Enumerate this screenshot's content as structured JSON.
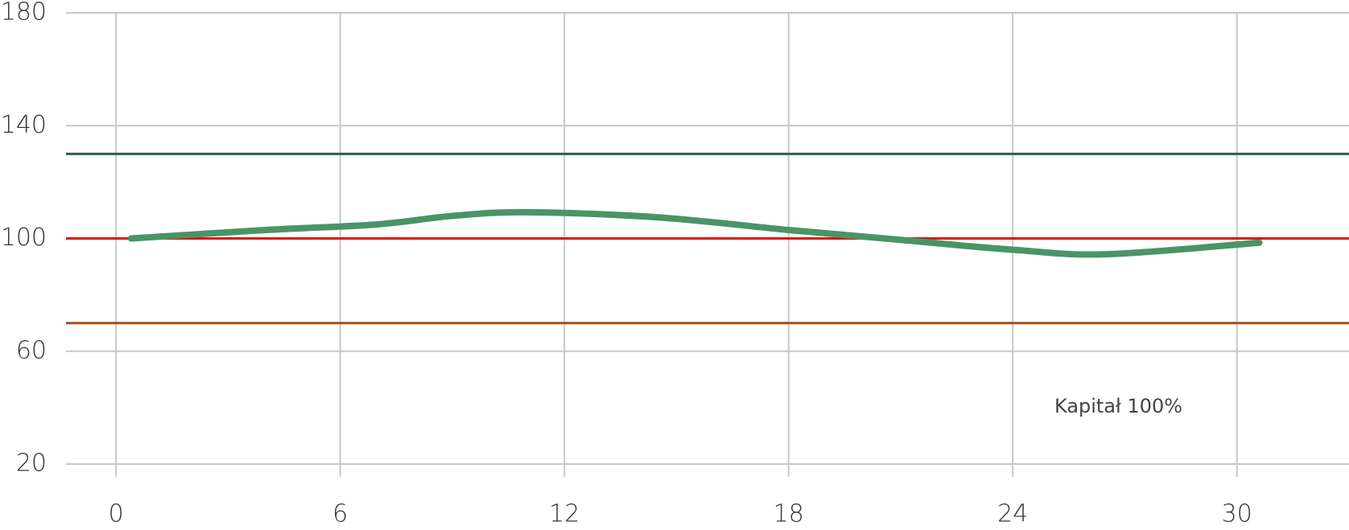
{
  "chart_data": {
    "type": "line",
    "annotation": "Kapitał 100%",
    "x": [
      0.4,
      4,
      7,
      9,
      11,
      14.5,
      18,
      21,
      24,
      26.5,
      30.6
    ],
    "series": [
      {
        "color": "#4a9466",
        "values": [
          100,
          103,
          105,
          108,
          109.3,
          107.5,
          103,
          99.5,
          96,
          94.4,
          98.5
        ]
      }
    ],
    "reference_lines": [
      {
        "value": 130,
        "color": "#2f5e48"
      },
      {
        "value": 100,
        "color": "#e01010"
      },
      {
        "value": 70,
        "color": "#a0521e"
      }
    ],
    "xlim": [
      -1.34,
      33
    ],
    "xticks": [
      0,
      6,
      12,
      18,
      24,
      30
    ],
    "ylim": [
      20,
      180
    ],
    "yticks": [
      20,
      60,
      100,
      140,
      180
    ],
    "grid": true
  }
}
